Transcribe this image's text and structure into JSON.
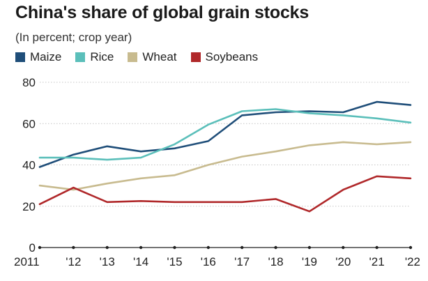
{
  "chart_data": {
    "type": "line",
    "title": "China's share of global grain stocks",
    "subtitle": "(In percent; crop year)",
    "xlabel": "",
    "ylabel": "",
    "x": [
      "2011",
      "'12",
      "'13",
      "'14",
      "'15",
      "'16",
      "'17",
      "'18",
      "'19",
      "'20",
      "'21",
      "'22"
    ],
    "ylim": [
      0,
      80
    ],
    "yticks": [
      0,
      20,
      40,
      60,
      80
    ],
    "grid": true,
    "legend_position": "top-left",
    "series": [
      {
        "name": "Maize",
        "color": "#1f4e79",
        "values": [
          39,
          45,
          49,
          46.5,
          48,
          51.5,
          64,
          65.5,
          66,
          65.5,
          70.5,
          69
        ]
      },
      {
        "name": "Rice",
        "color": "#5bbfba",
        "values": [
          43.5,
          43.5,
          42.5,
          43.5,
          50,
          59.5,
          66,
          67,
          65,
          64,
          62.5,
          60.5
        ]
      },
      {
        "name": "Wheat",
        "color": "#c8bb8f",
        "values": [
          30,
          28,
          31,
          33.5,
          35,
          40,
          44,
          46.5,
          49.5,
          51,
          50,
          51
        ]
      },
      {
        "name": "Soybeans",
        "color": "#b0282a",
        "values": [
          21,
          29,
          22,
          22.5,
          22,
          22,
          22,
          23.5,
          17.5,
          28,
          34.5,
          33.5
        ]
      }
    ]
  }
}
